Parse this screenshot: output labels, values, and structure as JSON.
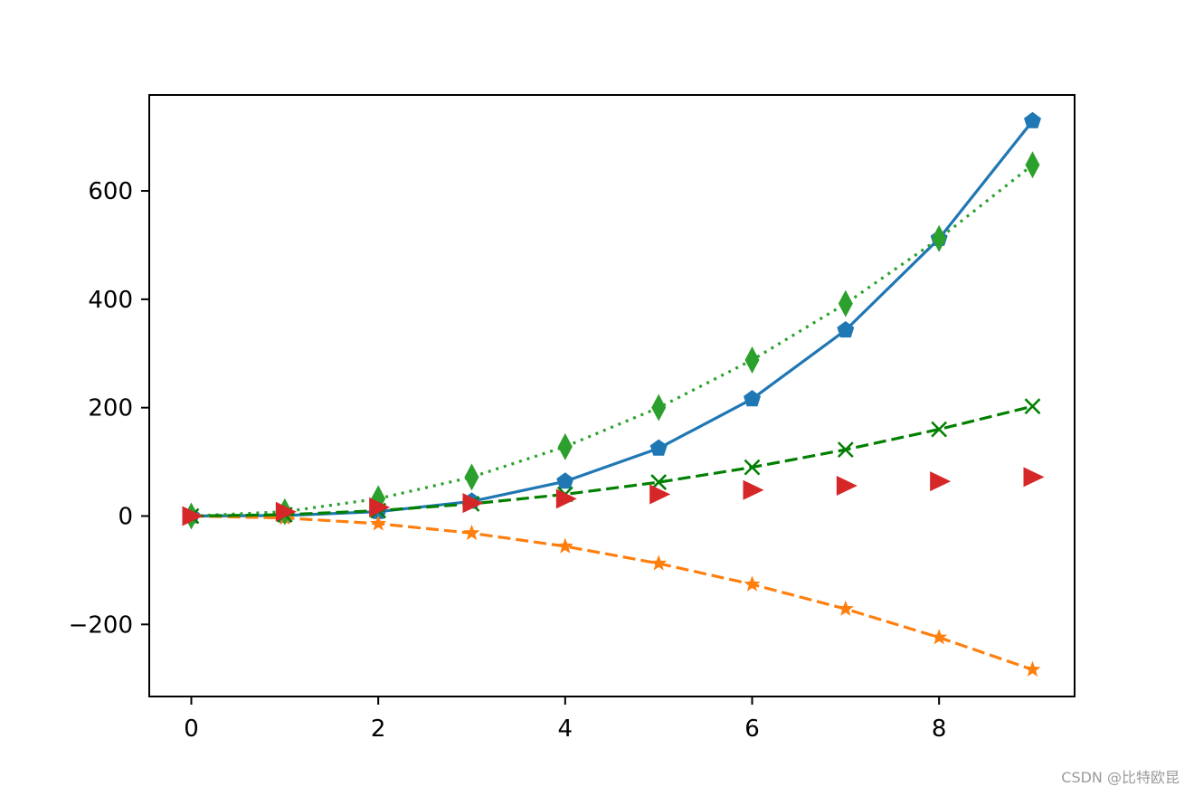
{
  "chart_data": {
    "type": "line",
    "title": "",
    "xlabel": "",
    "ylabel": "",
    "xlim": [
      -0.45,
      9.45
    ],
    "ylim": [
      -333,
      777
    ],
    "x_ticks": [
      0,
      2,
      4,
      6,
      8
    ],
    "x_tick_labels": [
      "0",
      "2",
      "4",
      "6",
      "8"
    ],
    "y_ticks": [
      -200,
      0,
      200,
      400,
      600
    ],
    "y_tick_labels": [
      "−200",
      "0",
      "200",
      "400",
      "600"
    ],
    "grid": false,
    "x": [
      0,
      1,
      2,
      3,
      4,
      5,
      6,
      7,
      8,
      9
    ],
    "series": [
      {
        "values": [
          0,
          1,
          8,
          27,
          64,
          125,
          216,
          343,
          512,
          729
        ],
        "color": "#1f77b4",
        "line": "solid",
        "marker": "pentagon"
      },
      {
        "values": [
          0,
          -3.5,
          -14,
          -31.5,
          -56,
          -87.5,
          -126,
          -171.5,
          -224,
          -283.5
        ],
        "color": "#ff7f0e",
        "line": "dashed",
        "marker": "star"
      },
      {
        "values": [
          0,
          8,
          32,
          72,
          128,
          200,
          288,
          392,
          512,
          648
        ],
        "color": "#2ca02c",
        "line": "dotted",
        "marker": "thin-diamond"
      },
      {
        "values": [
          0,
          2.5,
          10,
          22.5,
          40,
          62.5,
          90,
          122.5,
          160,
          202.5
        ],
        "color": "#008000",
        "line": "dashed",
        "marker": "x"
      },
      {
        "values": [
          0,
          8,
          16,
          24,
          32,
          40,
          48,
          56,
          64,
          72
        ],
        "color": "#d62728",
        "line": "none",
        "marker": "triangle-right"
      }
    ]
  },
  "watermark": "CSDN @比特欧昆"
}
